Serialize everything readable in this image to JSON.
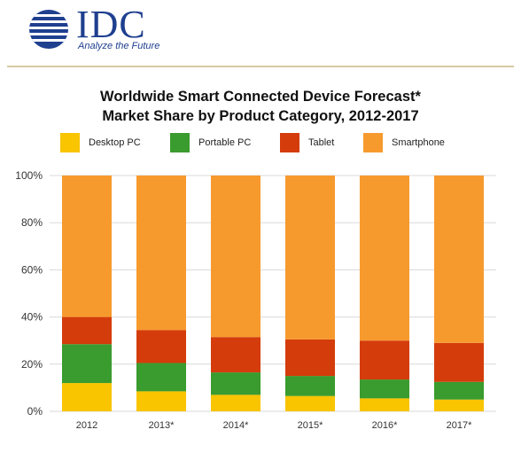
{
  "logo": {
    "name": "IDC",
    "tagline": "Analyze the Future"
  },
  "colors": {
    "desktop": "#f9c400",
    "portable": "#3a9b2e",
    "tablet": "#d43c0b",
    "smartphone": "#f79a2e",
    "rule": "#d7c9a6",
    "brand": "#1f3f8f"
  },
  "chart_data": {
    "type": "bar",
    "stacked": true,
    "title": "Worldwide Smart Connected Device Forecast*",
    "subtitle": "Market Share by Product Category, 2012-2017",
    "categories": [
      "2012",
      "2013*",
      "2014*",
      "2015*",
      "2016*",
      "2017*"
    ],
    "series": [
      {
        "name": "Desktop PC",
        "color": "#f9c400",
        "values": [
          12,
          8.5,
          7,
          6.5,
          5.5,
          5
        ]
      },
      {
        "name": "Portable PC",
        "color": "#3a9b2e",
        "values": [
          16.5,
          12,
          9.5,
          8.5,
          8,
          7.5
        ]
      },
      {
        "name": "Tablet",
        "color": "#d43c0b",
        "values": [
          11.5,
          14,
          15,
          15.5,
          16.5,
          16.5
        ]
      },
      {
        "name": "Smartphone",
        "color": "#f79a2e",
        "values": [
          60,
          65.5,
          68.5,
          69.5,
          70,
          71
        ]
      }
    ],
    "yticks": [
      "0%",
      "20%",
      "40%",
      "60%",
      "80%",
      "100%"
    ],
    "ylim": [
      0,
      100
    ],
    "grid": true,
    "legend": "top"
  }
}
